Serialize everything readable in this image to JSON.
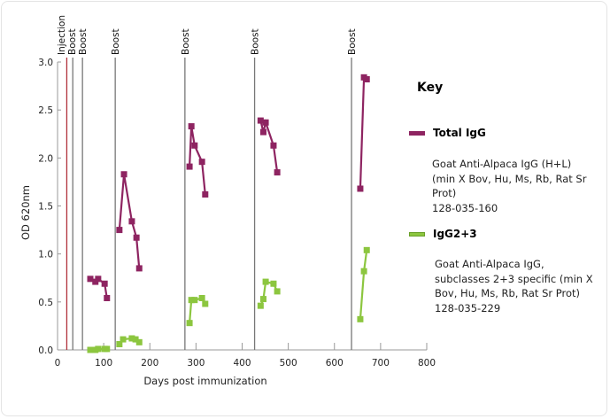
{
  "chart_data": {
    "type": "line",
    "title": "",
    "xlabel": "Days post immunization",
    "ylabel": "OD 620nm",
    "xlim": [
      0,
      800
    ],
    "ylim": [
      0,
      3.0
    ],
    "xticks": [
      0,
      100,
      200,
      300,
      400,
      500,
      600,
      700,
      800
    ],
    "yticks": [
      "0.0",
      "0.5",
      "1.0",
      "1.5",
      "2.0",
      "2.5",
      "3.0"
    ],
    "grid": false,
    "events": [
      {
        "label": "Injection",
        "day": 20,
        "color": "#b0303a"
      },
      {
        "label": "Boost",
        "day": 33,
        "color": "#777777"
      },
      {
        "label": "Boost",
        "day": 54,
        "color": "#777777"
      },
      {
        "label": "Boost",
        "day": 125,
        "color": "#777777"
      },
      {
        "label": "Boost",
        "day": 276,
        "color": "#777777"
      },
      {
        "label": "Boost",
        "day": 427,
        "color": "#777777"
      },
      {
        "label": "Boost",
        "day": 637,
        "color": "#777777"
      }
    ],
    "series": [
      {
        "name": "Total IgG",
        "color": "#8e2461",
        "segments": [
          [
            [
              71,
              0.74
            ],
            [
              82,
              0.71
            ],
            [
              88,
              0.74
            ],
            [
              102,
              0.69
            ],
            [
              107,
              0.54
            ]
          ],
          [
            [
              134,
              1.25
            ],
            [
              144,
              1.83
            ],
            [
              161,
              1.34
            ],
            [
              171,
              1.17
            ],
            [
              177,
              0.85
            ]
          ],
          [
            [
              286,
              1.91
            ],
            [
              290,
              2.33
            ],
            [
              297,
              2.13
            ],
            [
              313,
              1.96
            ],
            [
              320,
              1.62
            ]
          ],
          [
            [
              440,
              2.39
            ],
            [
              446,
              2.27
            ],
            [
              451,
              2.37
            ],
            [
              468,
              2.13
            ],
            [
              476,
              1.85
            ]
          ],
          [
            [
              656,
              1.68
            ],
            [
              664,
              2.84
            ],
            [
              670,
              2.82
            ]
          ]
        ]
      },
      {
        "name": "IgG2+3",
        "color": "#8cc63f",
        "segments": [
          [
            [
              71,
              0.0
            ],
            [
              82,
              0.0
            ],
            [
              88,
              0.01
            ],
            [
              102,
              0.01
            ],
            [
              107,
              0.01
            ]
          ],
          [
            [
              134,
              0.06
            ],
            [
              142,
              0.11
            ],
            [
              161,
              0.12
            ],
            [
              169,
              0.11
            ],
            [
              177,
              0.08
            ]
          ],
          [
            [
              286,
              0.28
            ],
            [
              290,
              0.52
            ],
            [
              297,
              0.52
            ],
            [
              313,
              0.54
            ],
            [
              320,
              0.48
            ]
          ],
          [
            [
              440,
              0.46
            ],
            [
              446,
              0.53
            ],
            [
              451,
              0.71
            ],
            [
              468,
              0.69
            ],
            [
              476,
              0.61
            ]
          ],
          [
            [
              656,
              0.32
            ],
            [
              664,
              0.82
            ],
            [
              670,
              1.04
            ]
          ]
        ]
      }
    ]
  },
  "key": {
    "title": "Key",
    "items": [
      {
        "label": "Total IgG",
        "color": "#8e2461",
        "description": [
          "Goat Anti-Alpaca IgG (H+L)",
          "(min X Bov, Hu, Ms, Rb, Rat Sr",
          "Prot)",
          "128-035-160"
        ]
      },
      {
        "label": "IgG2+3",
        "color": "#8cc63f",
        "description": [
          "Goat Anti-Alpaca IgG,",
          "subclasses 2+3 specific (min X",
          "Bov, Hu, Ms, Rb, Rat Sr Prot)",
          "128-035-229"
        ]
      }
    ]
  }
}
